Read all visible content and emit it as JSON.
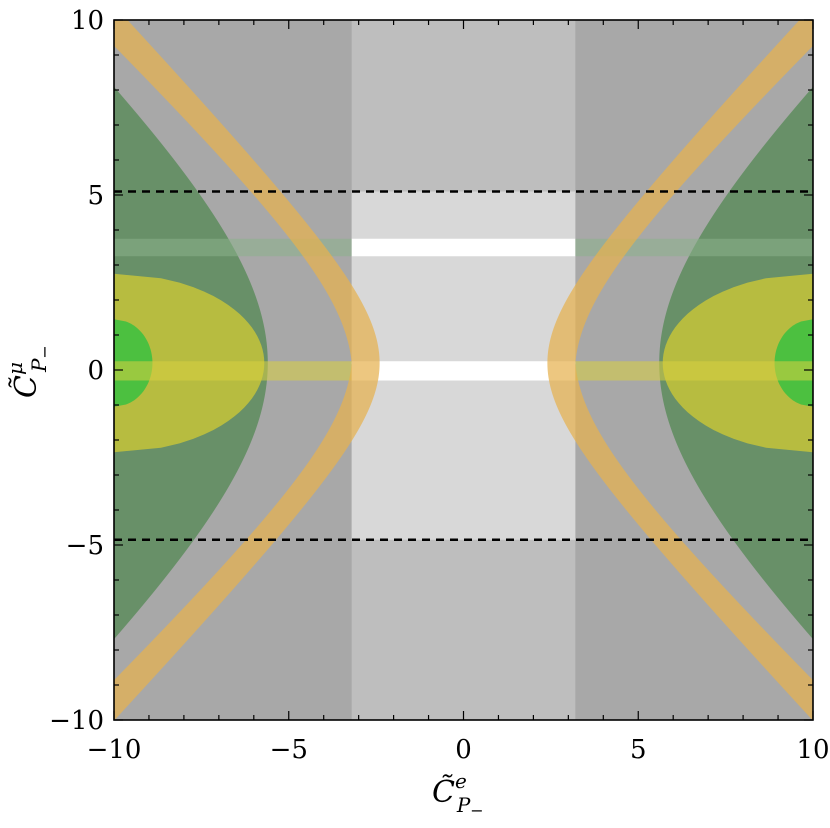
{
  "chart_data": {
    "type": "area",
    "title": "",
    "xlabel": {
      "base": "C̃",
      "sup": "e",
      "sub": "P",
      "subsub": "−"
    },
    "ylabel": {
      "base": "C̃",
      "sup": "μ",
      "sub": "P",
      "subsub": "−"
    },
    "xlim": [
      -10,
      10
    ],
    "ylim": [
      -10,
      10
    ],
    "xticks": [
      -10,
      -5,
      0,
      5,
      10
    ],
    "yticks": [
      -10,
      -5,
      0,
      5,
      10
    ],
    "xtick_labels": [
      "−10",
      "−5",
      "0",
      "5",
      "10"
    ],
    "ytick_labels": [
      "−10",
      "−5",
      "0",
      "5",
      "10"
    ],
    "grid": false,
    "colors": {
      "background_gray": "#a8a8a8",
      "middle_band": "#bebebe",
      "inner_region": "#d8d8d8",
      "white_strip": "#ffffff",
      "orange_band": "#e6b24f",
      "teal_region": "#5d8c5d",
      "yellow_region": "#c6c43a",
      "green_region": "#40c040",
      "dashed_line": "#000000"
    },
    "vertical_bands": [
      {
        "x_range": [
          -3.2,
          3.2
        ],
        "fill": "middle_band"
      }
    ],
    "inner_region": {
      "x_range": [
        -3.2,
        3.2
      ],
      "y_range": [
        -4.85,
        5.1
      ]
    },
    "white_strips": [
      {
        "y_range": [
          3.25,
          3.75
        ]
      },
      {
        "y_range": [
          -0.3,
          0.25
        ]
      }
    ],
    "horizontal_dashed_lines": [
      5.1,
      -4.85
    ],
    "hyperbola_bands": {
      "center_y": 0.2,
      "inner_vertex": 2.4,
      "outer_vertex": 3.2,
      "inner_slope": 0.95,
      "outer_slope": 0.95
    },
    "teal_curve": {
      "center_y": 0.2,
      "vertex": 5.6,
      "slope": 1.05
    },
    "yellow_lens": {
      "center_y": 0.2,
      "edge_x": 5.7,
      "half_height": 2.5
    },
    "green_lens": {
      "center_y": 0.2,
      "edge_x": 8.9,
      "half_height": 1.25
    },
    "light_strips": [
      {
        "y_range": [
          3.25,
          3.75
        ],
        "fill": "#8ab08a"
      },
      {
        "y_range": [
          -0.3,
          0.25
        ],
        "fill": "#d8d040"
      }
    ]
  }
}
